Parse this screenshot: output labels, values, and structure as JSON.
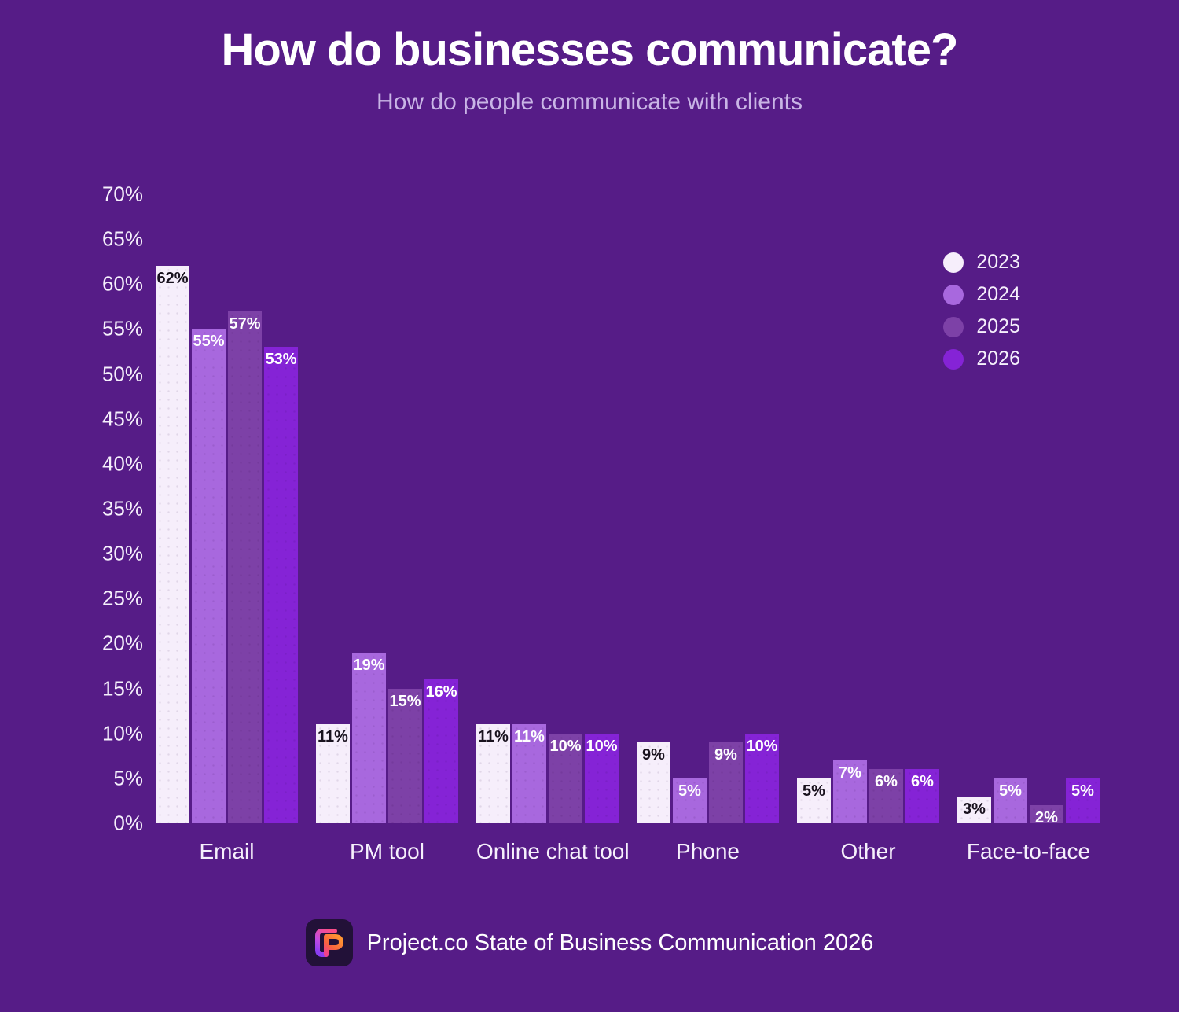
{
  "page": {
    "background_color": "#561c87"
  },
  "header": {
    "title": "How do businesses communicate?",
    "subtitle": "How do people communicate with clients"
  },
  "chart_data": {
    "type": "bar",
    "categories": [
      "Email",
      "PM tool",
      "Online chat tool",
      "Phone",
      "Other",
      "Face-to-face"
    ],
    "series": [
      {
        "name": "2023",
        "color": "#f6eefb",
        "label_color": "#19121e",
        "values": [
          62,
          11,
          11,
          9,
          5,
          3
        ]
      },
      {
        "name": "2024",
        "color": "#a868de",
        "label_color": "#ffffff",
        "values": [
          55,
          19,
          11,
          5,
          7,
          5
        ]
      },
      {
        "name": "2025",
        "color": "#7d41a7",
        "label_color": "#ffffff",
        "values": [
          57,
          15,
          10,
          9,
          6,
          2
        ]
      },
      {
        "name": "2026",
        "color": "#8523d6",
        "label_color": "#ffffff",
        "values": [
          53,
          16,
          10,
          10,
          6,
          5
        ]
      }
    ],
    "title": "How do businesses communicate?",
    "subtitle": "How do people communicate with clients",
    "xlabel": "",
    "ylabel": "",
    "ylim": [
      0,
      70
    ],
    "yticks": [
      0,
      5,
      10,
      15,
      20,
      25,
      30,
      35,
      40,
      45,
      50,
      55,
      60,
      65,
      70
    ],
    "value_suffix": "%",
    "grid": false,
    "legend_position": "top-right"
  },
  "footer": {
    "text": "Project.co State of Business Communication 2026",
    "logo": "project-co-logo"
  }
}
